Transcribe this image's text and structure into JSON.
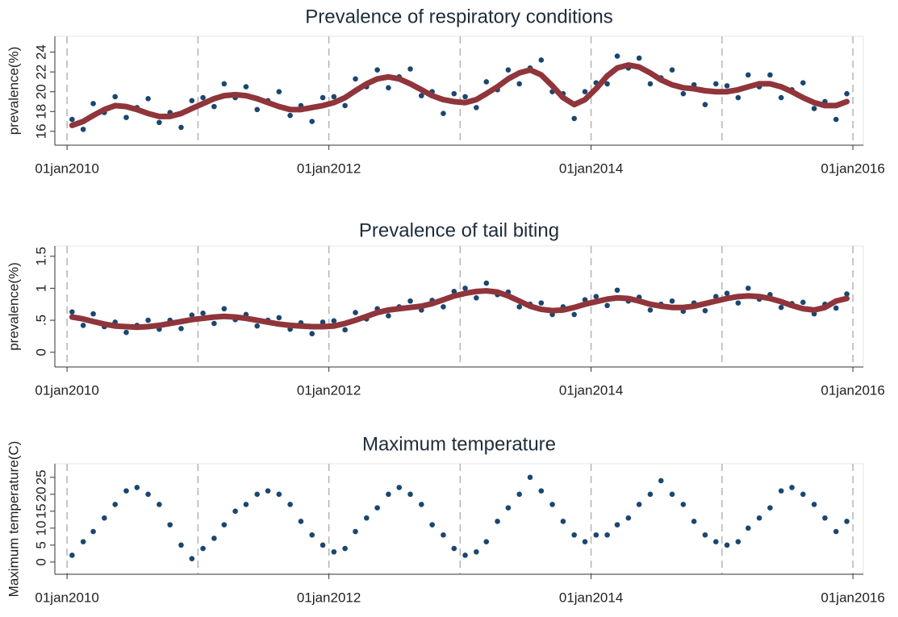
{
  "chart_data": [
    {
      "type": "scatter",
      "title": "Prevalence of respiratory conditions",
      "y_label": "prevalence(%)",
      "x": [
        "2010-01-15",
        "2010-02-15",
        "2010-03-15",
        "2010-04-15",
        "2010-05-15",
        "2010-06-15",
        "2010-07-15",
        "2010-08-15",
        "2010-09-15",
        "2010-10-15",
        "2010-11-15",
        "2010-12-15",
        "2011-01-15",
        "2011-02-15",
        "2011-03-15",
        "2011-04-15",
        "2011-05-15",
        "2011-06-15",
        "2011-07-15",
        "2011-08-15",
        "2011-09-15",
        "2011-10-15",
        "2011-11-15",
        "2011-12-15",
        "2012-01-15",
        "2012-02-15",
        "2012-03-15",
        "2012-04-15",
        "2012-05-15",
        "2012-06-15",
        "2012-07-15",
        "2012-08-15",
        "2012-09-15",
        "2012-10-15",
        "2012-11-15",
        "2012-12-15",
        "2013-01-15",
        "2013-02-15",
        "2013-03-15",
        "2013-04-15",
        "2013-05-15",
        "2013-06-15",
        "2013-07-15",
        "2013-08-15",
        "2013-09-15",
        "2013-10-15",
        "2013-11-15",
        "2013-12-15",
        "2014-01-15",
        "2014-02-15",
        "2014-03-15",
        "2014-04-15",
        "2014-05-15",
        "2014-06-15",
        "2014-07-15",
        "2014-08-15",
        "2014-09-15",
        "2014-10-15",
        "2014-11-15",
        "2014-12-15",
        "2015-01-15",
        "2015-02-15",
        "2015-03-15",
        "2015-04-15",
        "2015-05-15",
        "2015-06-15",
        "2015-07-15",
        "2015-08-15",
        "2015-09-15",
        "2015-10-15",
        "2015-11-15",
        "2015-12-15"
      ],
      "series": [
        {
          "kind": "points",
          "color": "#1a476f",
          "values": [
            17.2,
            16.2,
            18.8,
            17.9,
            19.5,
            17.4,
            18.4,
            19.3,
            16.9,
            17.9,
            16.4,
            19.1,
            19.4,
            18.5,
            20.8,
            19.4,
            20.5,
            18.2,
            19.1,
            20.0,
            17.6,
            18.6,
            17.0,
            19.4,
            19.5,
            18.6,
            21.3,
            20.5,
            22.2,
            20.4,
            21.5,
            22.3,
            19.6,
            20.0,
            17.8,
            19.8,
            19.5,
            18.4,
            21.0,
            20.2,
            22.2,
            20.8,
            22.4,
            23.2,
            20.0,
            19.8,
            17.3,
            20.0,
            20.9,
            20.8,
            23.6,
            22.4,
            23.4,
            20.8,
            21.4,
            22.2,
            19.8,
            20.7,
            18.7,
            20.8,
            20.6,
            19.4,
            21.7,
            20.5,
            21.7,
            19.4,
            20.2,
            20.9,
            18.3,
            19.0,
            17.2,
            19.8
          ]
        },
        {
          "kind": "line",
          "color": "#90353b",
          "values": [
            16.6,
            17.0,
            17.6,
            18.2,
            18.6,
            18.5,
            18.2,
            17.8,
            17.5,
            17.5,
            17.8,
            18.3,
            18.8,
            19.3,
            19.6,
            19.7,
            19.6,
            19.3,
            18.9,
            18.5,
            18.2,
            18.2,
            18.4,
            18.6,
            18.9,
            19.4,
            20.1,
            20.8,
            21.3,
            21.5,
            21.3,
            20.8,
            20.2,
            19.6,
            19.2,
            19.0,
            18.9,
            19.2,
            19.8,
            20.5,
            21.3,
            21.9,
            22.2,
            21.7,
            20.6,
            19.4,
            18.7,
            19.2,
            20.3,
            21.6,
            22.4,
            22.7,
            22.5,
            21.9,
            21.2,
            20.7,
            20.4,
            20.3,
            20.1,
            20.0,
            20.0,
            20.2,
            20.5,
            20.8,
            20.8,
            20.5,
            20.0,
            19.4,
            18.9,
            18.6,
            18.6,
            19.0
          ]
        }
      ],
      "xlim": [
        "2009-11-28",
        "2016-01-30"
      ],
      "xticks": [
        {
          "value": "2010-01-01",
          "label": "01jan2010"
        },
        {
          "value": "2012-01-01",
          "label": "01jan2012"
        },
        {
          "value": "2014-01-01",
          "label": "01jan2014"
        },
        {
          "value": "2016-01-01",
          "label": "01jan2016"
        }
      ],
      "xgrid": [
        "2010-01-01",
        "2011-01-01",
        "2012-01-01",
        "2013-01-01",
        "2014-01-01",
        "2015-01-01",
        "2016-01-01"
      ],
      "ylim": [
        14.6,
        25.6
      ],
      "yticks": [
        16,
        18,
        20,
        22,
        24
      ]
    },
    {
      "type": "scatter",
      "title": "Prevalence of tail biting",
      "y_label": "prevalence(%)",
      "x": [
        "2010-01-15",
        "2010-02-15",
        "2010-03-15",
        "2010-04-15",
        "2010-05-15",
        "2010-06-15",
        "2010-07-15",
        "2010-08-15",
        "2010-09-15",
        "2010-10-15",
        "2010-11-15",
        "2010-12-15",
        "2011-01-15",
        "2011-02-15",
        "2011-03-15",
        "2011-04-15",
        "2011-05-15",
        "2011-06-15",
        "2011-07-15",
        "2011-08-15",
        "2011-09-15",
        "2011-10-15",
        "2011-11-15",
        "2011-12-15",
        "2012-01-15",
        "2012-02-15",
        "2012-03-15",
        "2012-04-15",
        "2012-05-15",
        "2012-06-15",
        "2012-07-15",
        "2012-08-15",
        "2012-09-15",
        "2012-10-15",
        "2012-11-15",
        "2012-12-15",
        "2013-01-15",
        "2013-02-15",
        "2013-03-15",
        "2013-04-15",
        "2013-05-15",
        "2013-06-15",
        "2013-07-15",
        "2013-08-15",
        "2013-09-15",
        "2013-10-15",
        "2013-11-15",
        "2013-12-15",
        "2014-01-15",
        "2014-02-15",
        "2014-03-15",
        "2014-04-15",
        "2014-05-15",
        "2014-06-15",
        "2014-07-15",
        "2014-08-15",
        "2014-09-15",
        "2014-10-15",
        "2014-11-15",
        "2014-12-15",
        "2015-01-15",
        "2015-02-15",
        "2015-03-15",
        "2015-04-15",
        "2015-05-15",
        "2015-06-15",
        "2015-07-15",
        "2015-08-15",
        "2015-09-15",
        "2015-10-15",
        "2015-11-15",
        "2015-12-15"
      ],
      "series": [
        {
          "kind": "points",
          "color": "#1a476f",
          "values": [
            0.63,
            0.42,
            0.6,
            0.4,
            0.47,
            0.31,
            0.42,
            0.5,
            0.36,
            0.5,
            0.37,
            0.58,
            0.61,
            0.45,
            0.68,
            0.51,
            0.59,
            0.41,
            0.5,
            0.54,
            0.36,
            0.46,
            0.29,
            0.47,
            0.49,
            0.35,
            0.62,
            0.52,
            0.68,
            0.57,
            0.71,
            0.8,
            0.66,
            0.81,
            0.71,
            0.95,
            1.0,
            0.85,
            1.08,
            0.9,
            0.94,
            0.71,
            0.75,
            0.77,
            0.59,
            0.71,
            0.59,
            0.82,
            0.87,
            0.73,
            0.97,
            0.8,
            0.86,
            0.66,
            0.75,
            0.8,
            0.64,
            0.77,
            0.65,
            0.87,
            0.92,
            0.77,
            1.0,
            0.83,
            0.9,
            0.7,
            0.76,
            0.78,
            0.6,
            0.75,
            0.69,
            0.91
          ]
        },
        {
          "kind": "line",
          "color": "#90353b",
          "values": [
            0.55,
            0.52,
            0.48,
            0.44,
            0.41,
            0.4,
            0.39,
            0.4,
            0.42,
            0.45,
            0.48,
            0.51,
            0.53,
            0.55,
            0.56,
            0.55,
            0.53,
            0.5,
            0.47,
            0.44,
            0.42,
            0.41,
            0.4,
            0.4,
            0.41,
            0.45,
            0.5,
            0.56,
            0.62,
            0.66,
            0.68,
            0.7,
            0.72,
            0.76,
            0.82,
            0.88,
            0.92,
            0.95,
            0.96,
            0.94,
            0.88,
            0.8,
            0.72,
            0.67,
            0.65,
            0.66,
            0.7,
            0.75,
            0.79,
            0.83,
            0.85,
            0.84,
            0.8,
            0.75,
            0.72,
            0.7,
            0.7,
            0.72,
            0.76,
            0.8,
            0.84,
            0.87,
            0.88,
            0.87,
            0.84,
            0.79,
            0.73,
            0.68,
            0.66,
            0.7,
            0.8,
            0.84
          ]
        }
      ],
      "xlim": [
        "2009-11-28",
        "2016-01-30"
      ],
      "xticks": [
        {
          "value": "2010-01-01",
          "label": "01jan2010"
        },
        {
          "value": "2012-01-01",
          "label": "01jan2012"
        },
        {
          "value": "2014-01-01",
          "label": "01jan2014"
        },
        {
          "value": "2016-01-01",
          "label": "01jan2016"
        }
      ],
      "xgrid": [
        "2010-01-01",
        "2011-01-01",
        "2012-01-01",
        "2013-01-01",
        "2014-01-01",
        "2015-01-01",
        "2016-01-01"
      ],
      "ylim": [
        -0.23,
        1.66
      ],
      "yticks": [
        0,
        {
          "value": 0.5,
          "label": ".5"
        },
        1,
        1.5
      ]
    },
    {
      "type": "scatter",
      "title": "Maximum temperature",
      "y_label": "Maximum temperature(C)",
      "x": [
        "2010-01-15",
        "2010-02-15",
        "2010-03-15",
        "2010-04-15",
        "2010-05-15",
        "2010-06-15",
        "2010-07-15",
        "2010-08-15",
        "2010-09-15",
        "2010-10-15",
        "2010-11-15",
        "2010-12-15",
        "2011-01-15",
        "2011-02-15",
        "2011-03-15",
        "2011-04-15",
        "2011-05-15",
        "2011-06-15",
        "2011-07-15",
        "2011-08-15",
        "2011-09-15",
        "2011-10-15",
        "2011-11-15",
        "2011-12-15",
        "2012-01-15",
        "2012-02-15",
        "2012-03-15",
        "2012-04-15",
        "2012-05-15",
        "2012-06-15",
        "2012-07-15",
        "2012-08-15",
        "2012-09-15",
        "2012-10-15",
        "2012-11-15",
        "2012-12-15",
        "2013-01-15",
        "2013-02-15",
        "2013-03-15",
        "2013-04-15",
        "2013-05-15",
        "2013-06-15",
        "2013-07-15",
        "2013-08-15",
        "2013-09-15",
        "2013-10-15",
        "2013-11-15",
        "2013-12-15",
        "2014-01-15",
        "2014-02-15",
        "2014-03-15",
        "2014-04-15",
        "2014-05-15",
        "2014-06-15",
        "2014-07-15",
        "2014-08-15",
        "2014-09-15",
        "2014-10-15",
        "2014-11-15",
        "2014-12-15",
        "2015-01-15",
        "2015-02-15",
        "2015-03-15",
        "2015-04-15",
        "2015-05-15",
        "2015-06-15",
        "2015-07-15",
        "2015-08-15",
        "2015-09-15",
        "2015-10-15",
        "2015-11-15",
        "2015-12-15"
      ],
      "series": [
        {
          "kind": "points",
          "color": "#1a476f",
          "values": [
            2,
            6,
            9,
            13,
            17,
            21,
            22,
            20,
            17,
            11,
            5,
            1,
            4,
            7,
            11,
            15,
            17,
            20,
            21,
            20,
            17,
            12,
            8,
            5,
            3,
            4,
            9,
            13,
            16,
            20,
            22,
            20,
            17,
            11,
            8,
            4,
            2,
            3,
            6,
            12,
            16,
            20,
            25,
            21,
            17,
            12,
            8,
            6,
            8,
            8,
            11,
            13,
            17,
            20,
            24,
            20,
            17,
            12,
            8,
            6,
            5,
            6,
            10,
            13,
            16,
            21,
            22,
            20,
            17,
            13,
            9,
            12
          ]
        }
      ],
      "xlim": [
        "2009-11-28",
        "2016-01-30"
      ],
      "xticks": [
        {
          "value": "2010-01-01",
          "label": "01jan2010"
        },
        {
          "value": "2012-01-01",
          "label": "01jan2012"
        },
        {
          "value": "2014-01-01",
          "label": "01jan2014"
        },
        {
          "value": "2016-01-01",
          "label": "01jan2016"
        }
      ],
      "xgrid": [
        "2010-01-01",
        "2011-01-01",
        "2012-01-01",
        "2013-01-01",
        "2014-01-01",
        "2015-01-01",
        "2016-01-01"
      ],
      "ylim": [
        -3.6,
        29
      ],
      "yticks": [
        0,
        5,
        10,
        15,
        20,
        25
      ]
    }
  ]
}
